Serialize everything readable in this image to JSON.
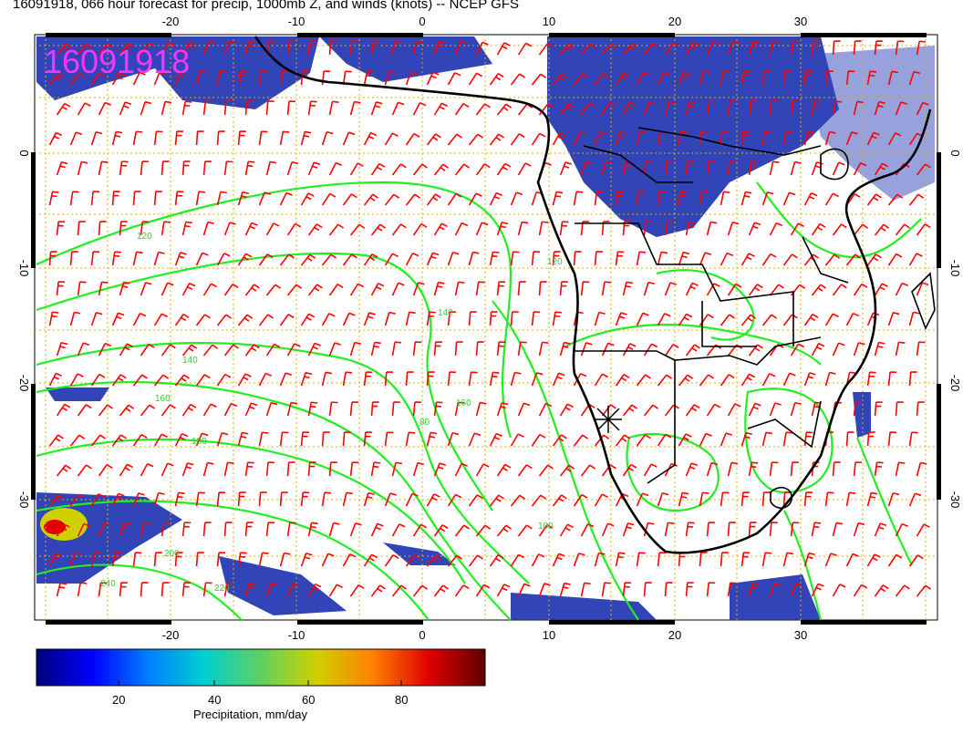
{
  "title": "16091918, 066 hour forecast for precip, 1000mb Z, and winds (knots) -- NCEP GFS",
  "stamp": "16091918",
  "axes": {
    "lon_ticks": [
      "-20",
      "-10",
      "0",
      "10",
      "20",
      "30"
    ],
    "lat_ticks": [
      "0",
      "-10",
      "-20",
      "-30"
    ]
  },
  "colorbar": {
    "title": "Precipitation, mm/day",
    "ticks": [
      "20",
      "40",
      "60",
      "80"
    ],
    "colors": [
      "#00007a",
      "#0000ff",
      "#0080ff",
      "#00d0d0",
      "#60d060",
      "#d0d000",
      "#ff8000",
      "#e00000",
      "#600000"
    ]
  },
  "contour_labels": [
    "120",
    "140",
    "160",
    "180",
    "200",
    "220",
    "240",
    "80",
    "100",
    "120",
    "140",
    "160"
  ],
  "colors": {
    "contour": "#22ee22",
    "wind_barbs": "#ff0000",
    "coast": "#000000",
    "grid": "#e0b000",
    "precip": "#1a2fb0"
  }
}
